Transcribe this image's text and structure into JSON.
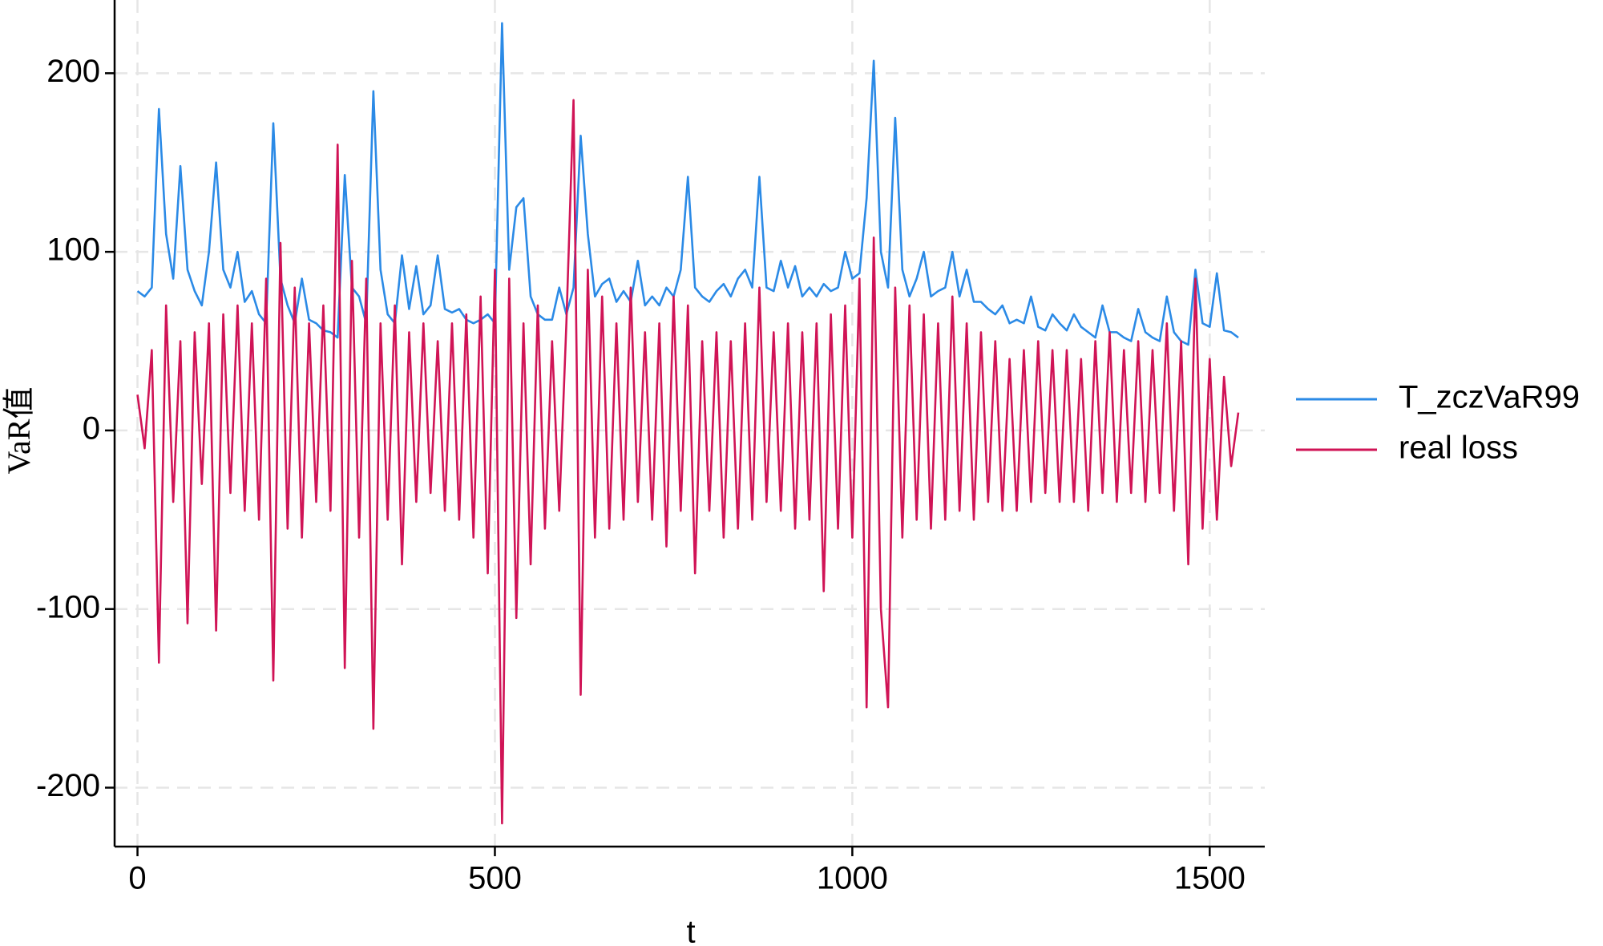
{
  "chart_data": {
    "type": "line",
    "xlabel": "t",
    "ylabel": "VaR值",
    "x": [
      0,
      10,
      20,
      30,
      40,
      50,
      60,
      70,
      80,
      90,
      100,
      110,
      120,
      130,
      140,
      150,
      160,
      170,
      180,
      190,
      200,
      210,
      220,
      230,
      240,
      250,
      260,
      270,
      280,
      290,
      300,
      310,
      320,
      330,
      340,
      350,
      360,
      370,
      380,
      390,
      400,
      410,
      420,
      430,
      440,
      450,
      460,
      470,
      480,
      490,
      500,
      510,
      520,
      530,
      540,
      550,
      560,
      570,
      580,
      590,
      600,
      610,
      620,
      630,
      640,
      650,
      660,
      670,
      680,
      690,
      700,
      710,
      720,
      730,
      740,
      750,
      760,
      770,
      780,
      790,
      800,
      810,
      820,
      830,
      840,
      850,
      860,
      870,
      880,
      890,
      900,
      910,
      920,
      930,
      940,
      950,
      960,
      970,
      980,
      990,
      1000,
      1010,
      1020,
      1030,
      1040,
      1050,
      1060,
      1070,
      1080,
      1090,
      1100,
      1110,
      1120,
      1130,
      1140,
      1150,
      1160,
      1170,
      1180,
      1190,
      1200,
      1210,
      1220,
      1230,
      1240,
      1250,
      1260,
      1270,
      1280,
      1290,
      1300,
      1310,
      1320,
      1330,
      1340,
      1350,
      1360,
      1370,
      1380,
      1390,
      1400,
      1410,
      1420,
      1430,
      1440,
      1450,
      1460,
      1470,
      1480,
      1490,
      1500,
      1510,
      1520,
      1530,
      1540
    ],
    "series": [
      {
        "name": "T_zczVaR99",
        "color": "#2b8ae6",
        "values": [
          78,
          75,
          80,
          180,
          110,
          85,
          148,
          90,
          78,
          70,
          100,
          150,
          90,
          80,
          100,
          72,
          78,
          65,
          60,
          172,
          85,
          70,
          60,
          85,
          62,
          60,
          56,
          55,
          52,
          143,
          80,
          75,
          60,
          190,
          90,
          65,
          60,
          98,
          68,
          92,
          65,
          70,
          98,
          68,
          66,
          68,
          62,
          60,
          62,
          65,
          60,
          228,
          90,
          125,
          130,
          75,
          65,
          62,
          62,
          80,
          65,
          80,
          165,
          110,
          75,
          82,
          85,
          72,
          78,
          72,
          95,
          70,
          75,
          70,
          80,
          75,
          90,
          142,
          80,
          75,
          72,
          78,
          82,
          75,
          85,
          90,
          80,
          142,
          80,
          78,
          95,
          80,
          92,
          75,
          80,
          75,
          82,
          78,
          80,
          100,
          85,
          88,
          130,
          207,
          100,
          80,
          175,
          90,
          75,
          85,
          100,
          75,
          78,
          80,
          100,
          75,
          90,
          72,
          72,
          68,
          65,
          70,
          60,
          62,
          60,
          75,
          58,
          56,
          65,
          60,
          56,
          65,
          58,
          55,
          52,
          70,
          55,
          55,
          52,
          50,
          68,
          55,
          52,
          50,
          75,
          55,
          50,
          48,
          90,
          60,
          58,
          88,
          56,
          55,
          52
        ]
      },
      {
        "name": "real loss",
        "color": "#d01456",
        "values": [
          20,
          -10,
          45,
          -130,
          70,
          -40,
          50,
          -108,
          55,
          -30,
          60,
          -112,
          65,
          -35,
          70,
          -45,
          60,
          -50,
          85,
          -140,
          105,
          -55,
          80,
          -60,
          60,
          -40,
          70,
          -45,
          160,
          -133,
          95,
          -60,
          85,
          -167,
          60,
          -50,
          70,
          -75,
          55,
          -40,
          60,
          -35,
          50,
          -45,
          60,
          -50,
          65,
          -60,
          75,
          -80,
          90,
          -220,
          85,
          -105,
          60,
          -75,
          70,
          -55,
          50,
          -45,
          60,
          185,
          -148,
          90,
          -60,
          75,
          -55,
          60,
          -50,
          80,
          -40,
          55,
          -50,
          60,
          -65,
          75,
          -45,
          70,
          -80,
          50,
          -45,
          55,
          -60,
          50,
          -55,
          60,
          -50,
          80,
          -40,
          55,
          -45,
          60,
          -55,
          55,
          -50,
          60,
          -90,
          65,
          -55,
          70,
          -60,
          85,
          -155,
          108,
          -100,
          -155,
          80,
          -60,
          70,
          -50,
          65,
          -55,
          60,
          -50,
          75,
          -45,
          60,
          -50,
          55,
          -40,
          50,
          -45,
          40,
          -45,
          45,
          -40,
          50,
          -35,
          45,
          -40,
          45,
          -40,
          40,
          -45,
          50,
          -35,
          55,
          -40,
          45,
          -35,
          50,
          -40,
          45,
          -35,
          60,
          -45,
          50,
          -75,
          85,
          -55,
          40,
          -50,
          30,
          -20,
          10
        ]
      }
    ],
    "xlim": [
      -32,
      1577
    ],
    "ylim": [
      -233,
      241
    ],
    "xticks": [
      0,
      500,
      1000,
      1500
    ],
    "yticks": [
      -200,
      -100,
      0,
      100,
      200
    ],
    "grid": true,
    "legend": "right"
  }
}
